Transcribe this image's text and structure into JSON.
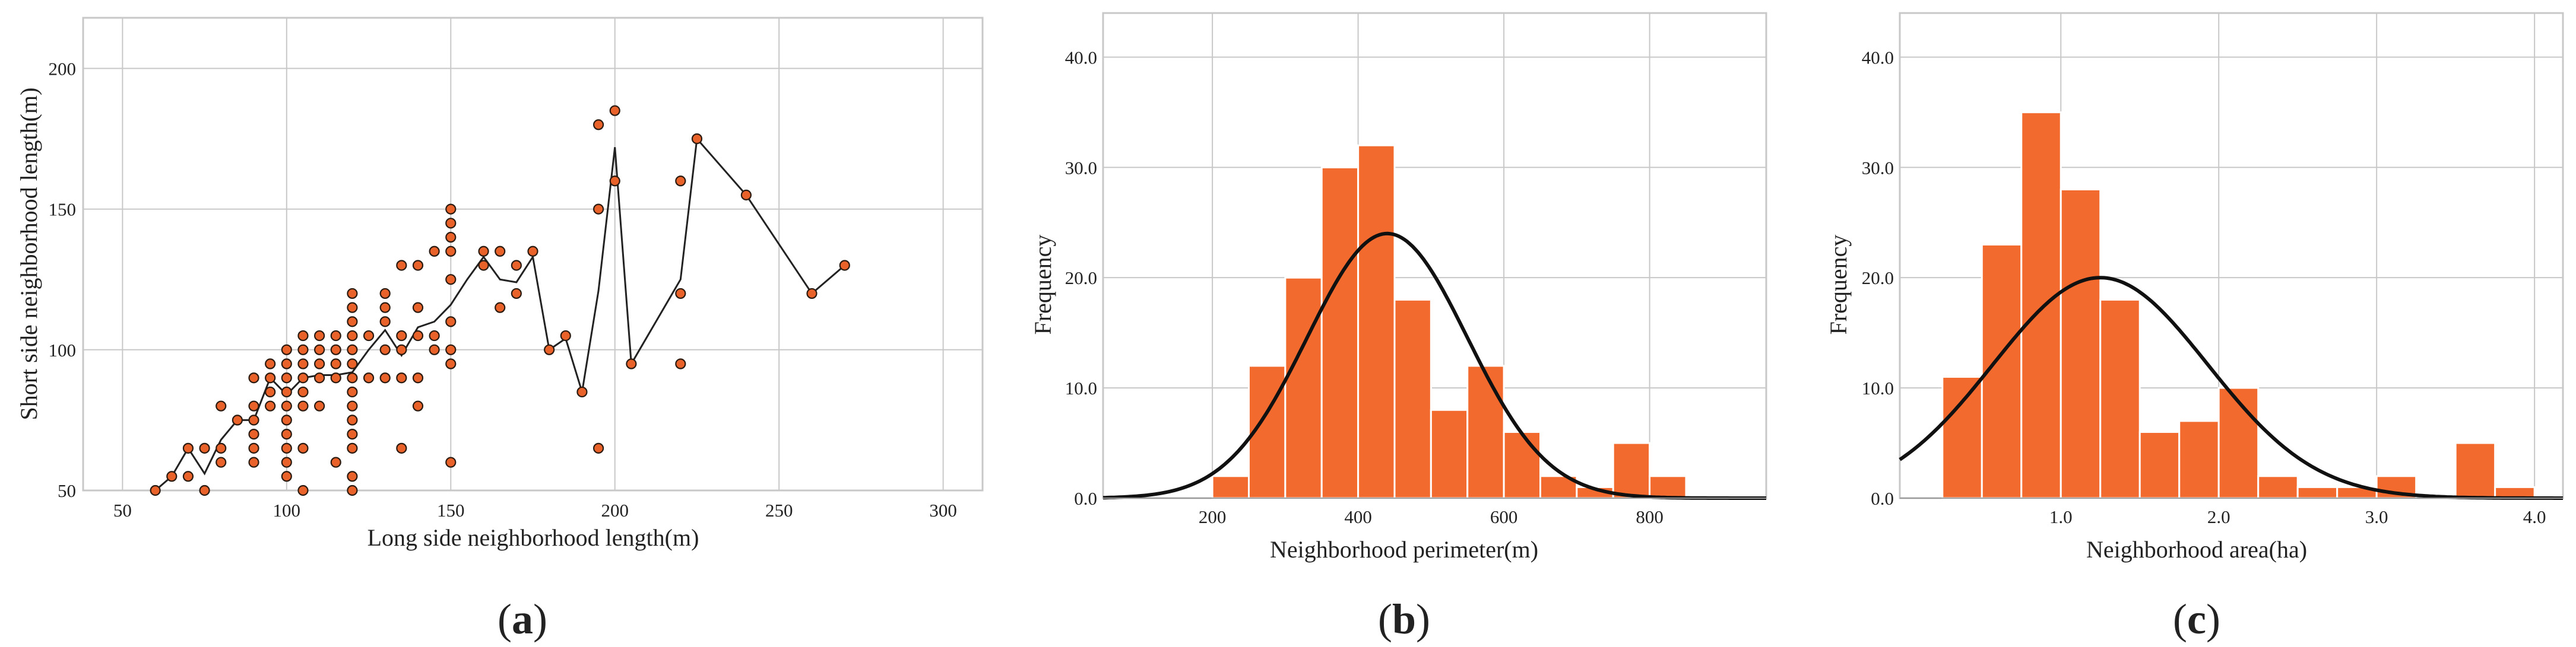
{
  "panels": [
    {
      "label_open": "(",
      "label_letter": "a",
      "label_close": ")"
    },
    {
      "label_open": "(",
      "label_letter": "b",
      "label_close": ")"
    },
    {
      "label_open": "(",
      "label_letter": "c",
      "label_close": ")"
    }
  ],
  "colors": {
    "bar": "#F26A2E",
    "bar_edge": "#ffffff",
    "point": "#E8622A",
    "point_edge": "#2a1a10",
    "curve": "#111111",
    "grid": "#c8c8c8"
  },
  "chart_data": [
    {
      "type": "scatter",
      "xlabel": "Long side neighborhood length(m)",
      "ylabel": "Short side neighborhood length(m)",
      "xlim": [
        38,
        312
      ],
      "ylim": [
        50,
        218
      ],
      "xticks": [
        50,
        100,
        150,
        200,
        250,
        300
      ],
      "yticks": [
        50,
        100,
        150,
        200
      ],
      "points": [
        [
          60,
          50
        ],
        [
          65,
          55
        ],
        [
          70,
          55
        ],
        [
          70,
          65
        ],
        [
          75,
          50
        ],
        [
          75,
          65
        ],
        [
          80,
          60
        ],
        [
          80,
          65
        ],
        [
          80,
          80
        ],
        [
          85,
          75
        ],
        [
          90,
          60
        ],
        [
          90,
          65
        ],
        [
          90,
          70
        ],
        [
          90,
          75
        ],
        [
          90,
          80
        ],
        [
          90,
          90
        ],
        [
          95,
          80
        ],
        [
          95,
          85
        ],
        [
          95,
          90
        ],
        [
          95,
          95
        ],
        [
          100,
          55
        ],
        [
          100,
          60
        ],
        [
          100,
          65
        ],
        [
          100,
          70
        ],
        [
          100,
          75
        ],
        [
          100,
          80
        ],
        [
          100,
          85
        ],
        [
          100,
          90
        ],
        [
          100,
          95
        ],
        [
          100,
          100
        ],
        [
          105,
          50
        ],
        [
          105,
          65
        ],
        [
          105,
          80
        ],
        [
          105,
          85
        ],
        [
          105,
          90
        ],
        [
          105,
          95
        ],
        [
          105,
          100
        ],
        [
          105,
          105
        ],
        [
          110,
          80
        ],
        [
          110,
          90
        ],
        [
          110,
          95
        ],
        [
          110,
          100
        ],
        [
          110,
          105
        ],
        [
          115,
          60
        ],
        [
          115,
          90
        ],
        [
          115,
          95
        ],
        [
          115,
          100
        ],
        [
          115,
          105
        ],
        [
          120,
          50
        ],
        [
          120,
          55
        ],
        [
          120,
          65
        ],
        [
          120,
          70
        ],
        [
          120,
          75
        ],
        [
          120,
          80
        ],
        [
          120,
          85
        ],
        [
          120,
          90
        ],
        [
          120,
          95
        ],
        [
          120,
          100
        ],
        [
          120,
          105
        ],
        [
          120,
          110
        ],
        [
          120,
          115
        ],
        [
          120,
          120
        ],
        [
          125,
          90
        ],
        [
          125,
          105
        ],
        [
          130,
          90
        ],
        [
          130,
          100
        ],
        [
          130,
          110
        ],
        [
          130,
          115
        ],
        [
          130,
          120
        ],
        [
          135,
          65
        ],
        [
          135,
          90
        ],
        [
          135,
          100
        ],
        [
          135,
          105
        ],
        [
          135,
          130
        ],
        [
          140,
          80
        ],
        [
          140,
          90
        ],
        [
          140,
          105
        ],
        [
          140,
          115
        ],
        [
          140,
          130
        ],
        [
          145,
          100
        ],
        [
          145,
          105
        ],
        [
          145,
          135
        ],
        [
          150,
          60
        ],
        [
          150,
          95
        ],
        [
          150,
          100
        ],
        [
          150,
          110
        ],
        [
          150,
          125
        ],
        [
          150,
          135
        ],
        [
          150,
          140
        ],
        [
          150,
          145
        ],
        [
          150,
          150
        ],
        [
          160,
          130
        ],
        [
          160,
          135
        ],
        [
          165,
          115
        ],
        [
          165,
          135
        ],
        [
          170,
          120
        ],
        [
          170,
          130
        ],
        [
          175,
          135
        ],
        [
          180,
          100
        ],
        [
          185,
          105
        ],
        [
          190,
          85
        ],
        [
          195,
          65
        ],
        [
          195,
          150
        ],
        [
          195,
          180
        ],
        [
          200,
          160
        ],
        [
          200,
          185
        ],
        [
          205,
          95
        ],
        [
          220,
          95
        ],
        [
          220,
          120
        ],
        [
          220,
          160
        ],
        [
          225,
          175
        ],
        [
          240,
          155
        ],
        [
          260,
          120
        ],
        [
          270,
          130
        ]
      ],
      "mean_line": {
        "x": [
          60,
          65,
          70,
          75,
          80,
          85,
          90,
          95,
          100,
          105,
          110,
          115,
          120,
          125,
          130,
          135,
          140,
          145,
          150,
          155,
          160,
          165,
          170,
          175,
          180,
          185,
          190,
          195,
          200,
          205,
          220,
          225,
          240,
          260,
          270
        ],
        "y": [
          50,
          55,
          65,
          56,
          68,
          75,
          75,
          90,
          84,
          90,
          91,
          91,
          92,
          100,
          107,
          98,
          108,
          110,
          116,
          125,
          133,
          125,
          124,
          133,
          100,
          104,
          85,
          121,
          172,
          95,
          125,
          175,
          155,
          120,
          130
        ]
      }
    },
    {
      "type": "bar",
      "xlabel": "Neighborhood perimeter(m)",
      "ylabel": "Frequency",
      "xlim": [
        50,
        960
      ],
      "ylim": [
        0,
        44
      ],
      "xticks": [
        200,
        400,
        600,
        800
      ],
      "xtick_labels": [
        "200",
        "400",
        "600",
        "800"
      ],
      "yticks": [
        0,
        10,
        20,
        30,
        40
      ],
      "ytick_labels": [
        "0.0",
        "10.0",
        "20.0",
        "30.0",
        "40.0"
      ],
      "bin_edges": [
        200,
        250,
        300,
        350,
        400,
        450,
        500,
        550,
        600,
        650,
        700,
        750,
        800,
        850
      ],
      "values": [
        2,
        12,
        20,
        30,
        32,
        18,
        8,
        12,
        6,
        2,
        1,
        5,
        2
      ],
      "normal_curve": {
        "mean": 440,
        "peak": 24,
        "sd": 110
      }
    },
    {
      "type": "bar",
      "xlabel": "Neighborhood area(ha)",
      "ylabel": "Frequency",
      "xlim": [
        -0.02,
        4.18
      ],
      "ylim": [
        0,
        44
      ],
      "xticks": [
        1.0,
        2.0,
        3.0,
        4.0
      ],
      "xtick_labels": [
        "1.0",
        "2.0",
        "3.0",
        "4.0"
      ],
      "yticks": [
        0,
        10,
        20,
        30,
        40
      ],
      "ytick_labels": [
        "0.0",
        "10.0",
        "20.0",
        "30.0",
        "40.0"
      ],
      "bin_edges": [
        0.25,
        0.5,
        0.75,
        1.0,
        1.25,
        1.5,
        1.75,
        2.0,
        2.25,
        2.5,
        2.75,
        3.0,
        3.25,
        3.5,
        3.75,
        4.0
      ],
      "values": [
        11,
        23,
        35,
        28,
        18,
        6,
        7,
        10,
        2,
        1,
        1,
        2,
        0,
        5,
        1
      ],
      "normal_curve": {
        "mean": 1.25,
        "peak": 20,
        "sd": 0.68
      }
    }
  ]
}
